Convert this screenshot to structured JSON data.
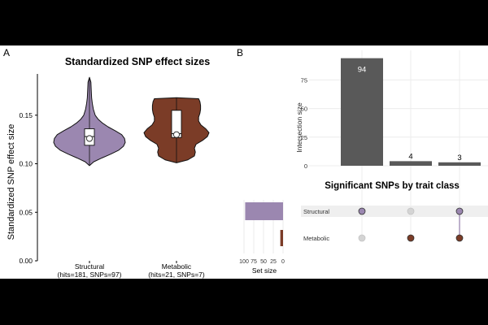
{
  "panels": {
    "a": "A",
    "b": "B"
  },
  "chart_data": [
    {
      "type": "violin",
      "title": "Standardized SNP effect sizes",
      "ylabel": "Standardized SNP effect size",
      "xlabel": "",
      "ylim": [
        0,
        0.19
      ],
      "yticks": [
        0.0,
        0.05,
        0.1,
        0.15
      ],
      "ytick_labels": [
        "0.00",
        "0.05",
        "0.10",
        "0.15"
      ],
      "categories": [
        {
          "name": "Structural",
          "label": "Structural",
          "sublabel": "(hits=181, SNPs=97)",
          "color": "#9b87b0",
          "stats": {
            "min": 0.098,
            "q1": 0.119,
            "median": 0.128,
            "mean": 0.126,
            "q3": 0.136,
            "max": 0.189
          },
          "density": [
            [
              0.098,
              0.0
            ],
            [
              0.102,
              0.12
            ],
            [
              0.106,
              0.35
            ],
            [
              0.11,
              0.6
            ],
            [
              0.114,
              0.82
            ],
            [
              0.118,
              0.95
            ],
            [
              0.122,
              1.0
            ],
            [
              0.126,
              0.98
            ],
            [
              0.13,
              0.9
            ],
            [
              0.134,
              0.72
            ],
            [
              0.138,
              0.52
            ],
            [
              0.142,
              0.36
            ],
            [
              0.146,
              0.24
            ],
            [
              0.15,
              0.16
            ],
            [
              0.156,
              0.11
            ],
            [
              0.162,
              0.08
            ],
            [
              0.168,
              0.06
            ],
            [
              0.176,
              0.05
            ],
            [
              0.184,
              0.04
            ],
            [
              0.189,
              0.0
            ]
          ]
        },
        {
          "name": "Metabolic",
          "label": "Metabolic",
          "sublabel": "(hits=21, SNPs=7)",
          "color": "#7b3c27",
          "stats": {
            "min": 0.101,
            "q1": 0.127,
            "median": 0.131,
            "mean": 0.13,
            "q3": 0.155,
            "max": 0.168
          },
          "density": [
            [
              0.101,
              0.0
            ],
            [
              0.104,
              0.35
            ],
            [
              0.108,
              0.55
            ],
            [
              0.112,
              0.58
            ],
            [
              0.116,
              0.55
            ],
            [
              0.12,
              0.6
            ],
            [
              0.124,
              0.8
            ],
            [
              0.128,
              0.95
            ],
            [
              0.132,
              1.0
            ],
            [
              0.136,
              0.9
            ],
            [
              0.14,
              0.75
            ],
            [
              0.144,
              0.68
            ],
            [
              0.148,
              0.68
            ],
            [
              0.152,
              0.72
            ],
            [
              0.156,
              0.74
            ],
            [
              0.16,
              0.74
            ],
            [
              0.164,
              0.72
            ],
            [
              0.167,
              0.68
            ],
            [
              0.168,
              0.0
            ]
          ]
        }
      ]
    },
    {
      "type": "upset",
      "title": "Significant SNPs by trait class",
      "intersection_ylabel": "Intersection size",
      "intersection_ylim": [
        0,
        98
      ],
      "intersection_yticks": [
        0,
        25,
        50,
        75
      ],
      "intersections": [
        {
          "size": 94,
          "sets": [
            "Structural"
          ]
        },
        {
          "size": 4,
          "sets": [
            "Metabolic"
          ]
        },
        {
          "size": 3,
          "sets": [
            "Structural",
            "Metabolic"
          ]
        }
      ],
      "sets": [
        {
          "name": "Structural",
          "size": 97,
          "color": "#9b87b0"
        },
        {
          "name": "Metabolic",
          "size": 7,
          "color": "#7b3c27"
        }
      ],
      "set_size_xlabel": "Set size",
      "set_size_xlim": [
        100,
        0
      ],
      "set_size_ticks": [
        100,
        75,
        50,
        25,
        0
      ],
      "bar_color": "#595959"
    }
  ]
}
